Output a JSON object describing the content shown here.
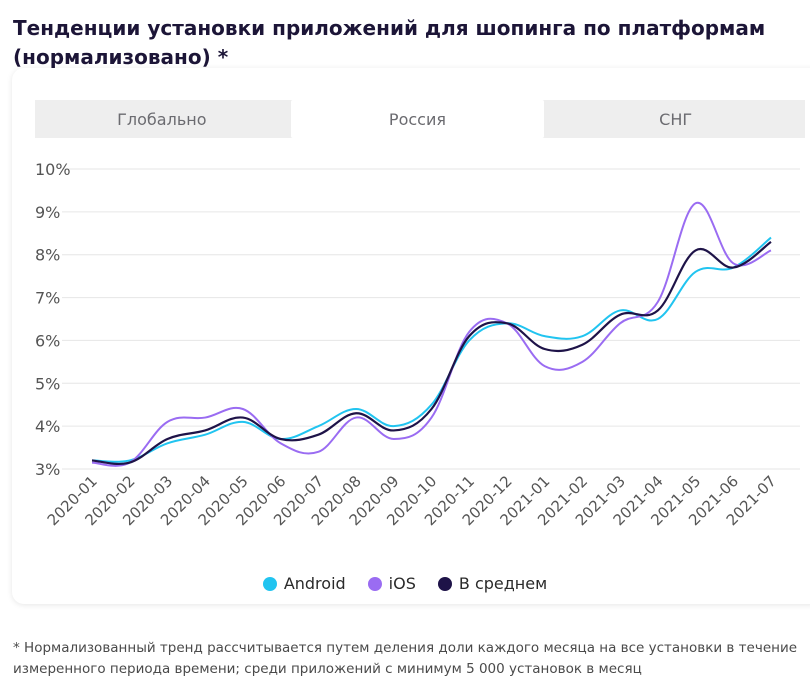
{
  "title": "Тенденции установки приложений для шопинга по платформам (нормализовано) *",
  "tabs": [
    {
      "label": "Глобально",
      "active": false
    },
    {
      "label": "Россия",
      "active": true
    },
    {
      "label": "СНГ",
      "active": false
    }
  ],
  "footnote": "* Нормализованный тренд рассчитывается путем деления доли каждого месяца на все установки в течение измеренного периода времени; среди приложений с минимум 5 000 установок в месяц",
  "chart_data": {
    "type": "line",
    "categories": [
      "2020-01",
      "2020-02",
      "2020-03",
      "2020-04",
      "2020-05",
      "2020-06",
      "2020-07",
      "2020-08",
      "2020-09",
      "2020-10",
      "2020-11",
      "2020-12",
      "2021-01",
      "2021-02",
      "2021-03",
      "2021-04",
      "2021-05",
      "2021-06",
      "2021-07"
    ],
    "yticks": [
      "10%",
      "9%",
      "8%",
      "7%",
      "6%",
      "5%",
      "4%",
      "3%"
    ],
    "ylim": [
      3,
      10
    ],
    "grid": true,
    "legend_position": "bottom",
    "series": [
      {
        "name": "Android",
        "color": "#21c4f0",
        "values": [
          3.2,
          3.2,
          3.6,
          3.8,
          4.1,
          3.7,
          4.0,
          4.4,
          4.0,
          4.5,
          6.0,
          6.4,
          6.1,
          6.1,
          6.7,
          6.5,
          7.6,
          7.7,
          8.4
        ]
      },
      {
        "name": "iOS",
        "color": "#9a6cf2",
        "values": [
          3.15,
          3.15,
          4.1,
          4.2,
          4.4,
          3.6,
          3.4,
          4.2,
          3.7,
          4.2,
          6.2,
          6.4,
          5.4,
          5.5,
          6.4,
          6.9,
          9.2,
          7.8,
          8.1
        ]
      },
      {
        "name": "В среднем",
        "color": "#1e1348",
        "values": [
          3.2,
          3.15,
          3.7,
          3.9,
          4.2,
          3.7,
          3.8,
          4.3,
          3.9,
          4.4,
          6.1,
          6.4,
          5.8,
          5.9,
          6.6,
          6.7,
          8.1,
          7.7,
          8.3
        ]
      }
    ]
  }
}
